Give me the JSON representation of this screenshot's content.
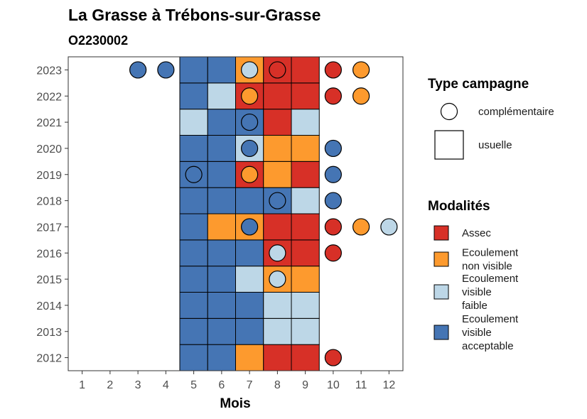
{
  "chart_data": {
    "type": "heatmap",
    "title": "La Grasse à Trébons-sur-Grasse",
    "subtitle": "O2230002",
    "xlabel": "Mois",
    "ylabel": "",
    "x_ticks": [
      "1",
      "2",
      "3",
      "4",
      "5",
      "6",
      "7",
      "8",
      "9",
      "10",
      "11",
      "12"
    ],
    "y_ticks": [
      "2012",
      "2013",
      "2014",
      "2015",
      "2016",
      "2017",
      "2018",
      "2019",
      "2020",
      "2021",
      "2022",
      "2023"
    ],
    "xlim": [
      0.5,
      12.5
    ],
    "ylim": [
      2011.5,
      2023.5
    ],
    "colors": {
      "Assec": "#d73027",
      "Ecoulement non visible": "#fd9a2e",
      "Ecoulement visible faible": "#bdd7e7",
      "Ecoulement visible acceptable": "#4575b4"
    },
    "legend_type": {
      "title": "Type campagne",
      "items": [
        {
          "shape": "circle",
          "label": "complémentaire"
        },
        {
          "shape": "square",
          "label": "usuelle"
        }
      ]
    },
    "legend_modalites": {
      "title": "Modalités",
      "items": [
        {
          "key": "Assec",
          "lines": [
            "Assec"
          ]
        },
        {
          "key": "Ecoulement non visible",
          "lines": [
            "Ecoulement",
            "non visible"
          ]
        },
        {
          "key": "Ecoulement visible faible",
          "lines": [
            "Ecoulement",
            "visible",
            "faible"
          ]
        },
        {
          "key": "Ecoulement visible acceptable",
          "lines": [
            "Ecoulement",
            "visible",
            "acceptable"
          ]
        }
      ]
    },
    "usuelle": [
      {
        "year": 2012,
        "months": [
          "Ecoulement visible acceptable",
          "Ecoulement visible acceptable",
          "Ecoulement non visible",
          "Assec",
          "Assec"
        ]
      },
      {
        "year": 2013,
        "months": [
          "Ecoulement visible acceptable",
          "Ecoulement visible acceptable",
          "Ecoulement visible acceptable",
          "Ecoulement visible faible",
          "Ecoulement visible faible"
        ]
      },
      {
        "year": 2014,
        "months": [
          "Ecoulement visible acceptable",
          "Ecoulement visible acceptable",
          "Ecoulement visible acceptable",
          "Ecoulement visible faible",
          "Ecoulement visible faible"
        ]
      },
      {
        "year": 2015,
        "months": [
          "Ecoulement visible acceptable",
          "Ecoulement visible acceptable",
          "Ecoulement visible faible",
          "Ecoulement non visible",
          "Ecoulement non visible"
        ]
      },
      {
        "year": 2016,
        "months": [
          "Ecoulement visible acceptable",
          "Ecoulement visible acceptable",
          "Ecoulement visible acceptable",
          "Assec",
          "Assec"
        ]
      },
      {
        "year": 2017,
        "months": [
          "Ecoulement visible acceptable",
          "Ecoulement non visible",
          "Ecoulement non visible",
          "Assec",
          "Assec"
        ]
      },
      {
        "year": 2018,
        "months": [
          "Ecoulement visible acceptable",
          "Ecoulement visible acceptable",
          "Ecoulement visible acceptable",
          "Ecoulement visible acceptable",
          "Ecoulement visible faible"
        ]
      },
      {
        "year": 2019,
        "months": [
          "Ecoulement visible acceptable",
          "Ecoulement visible acceptable",
          "Assec",
          "Ecoulement non visible",
          "Assec"
        ]
      },
      {
        "year": 2020,
        "months": [
          "Ecoulement visible acceptable",
          "Ecoulement visible acceptable",
          "Ecoulement visible faible",
          "Ecoulement non visible",
          "Ecoulement non visible"
        ]
      },
      {
        "year": 2021,
        "months": [
          "Ecoulement visible faible",
          "Ecoulement visible acceptable",
          "Ecoulement visible acceptable",
          "Assec",
          "Ecoulement visible faible"
        ]
      },
      {
        "year": 2022,
        "months": [
          "Ecoulement visible acceptable",
          "Ecoulement visible faible",
          "Assec",
          "Assec",
          "Assec"
        ]
      },
      {
        "year": 2023,
        "months": [
          "Ecoulement visible acceptable",
          "Ecoulement visible acceptable",
          "Ecoulement non visible",
          "Assec",
          "Assec"
        ]
      }
    ],
    "usuelle_start_month": 5,
    "complementaire": [
      {
        "year": 2023,
        "month": 3,
        "value": "Ecoulement visible acceptable"
      },
      {
        "year": 2023,
        "month": 4,
        "value": "Ecoulement visible acceptable"
      },
      {
        "year": 2023,
        "month": 7,
        "value": "Ecoulement visible faible"
      },
      {
        "year": 2023,
        "month": 8,
        "value": "Assec"
      },
      {
        "year": 2023,
        "month": 10,
        "value": "Assec"
      },
      {
        "year": 2023,
        "month": 11,
        "value": "Ecoulement non visible"
      },
      {
        "year": 2022,
        "month": 7,
        "value": "Ecoulement non visible"
      },
      {
        "year": 2022,
        "month": 10,
        "value": "Assec"
      },
      {
        "year": 2022,
        "month": 11,
        "value": "Ecoulement non visible"
      },
      {
        "year": 2021,
        "month": 7,
        "value": "Ecoulement visible acceptable"
      },
      {
        "year": 2020,
        "month": 7,
        "value": "Ecoulement visible acceptable"
      },
      {
        "year": 2020,
        "month": 10,
        "value": "Ecoulement visible acceptable"
      },
      {
        "year": 2019,
        "month": 5,
        "value": "Ecoulement visible acceptable"
      },
      {
        "year": 2019,
        "month": 7,
        "value": "Ecoulement non visible"
      },
      {
        "year": 2019,
        "month": 10,
        "value": "Ecoulement visible acceptable"
      },
      {
        "year": 2018,
        "month": 8,
        "value": "Ecoulement visible acceptable"
      },
      {
        "year": 2018,
        "month": 10,
        "value": "Ecoulement visible acceptable"
      },
      {
        "year": 2017,
        "month": 7,
        "value": "Ecoulement visible acceptable"
      },
      {
        "year": 2017,
        "month": 10,
        "value": "Assec"
      },
      {
        "year": 2017,
        "month": 11,
        "value": "Ecoulement non visible"
      },
      {
        "year": 2017,
        "month": 12,
        "value": "Ecoulement visible faible"
      },
      {
        "year": 2016,
        "month": 8,
        "value": "Ecoulement visible faible"
      },
      {
        "year": 2016,
        "month": 10,
        "value": "Assec"
      },
      {
        "year": 2015,
        "month": 8,
        "value": "Ecoulement visible faible"
      },
      {
        "year": 2012,
        "month": 10,
        "value": "Assec"
      }
    ]
  }
}
